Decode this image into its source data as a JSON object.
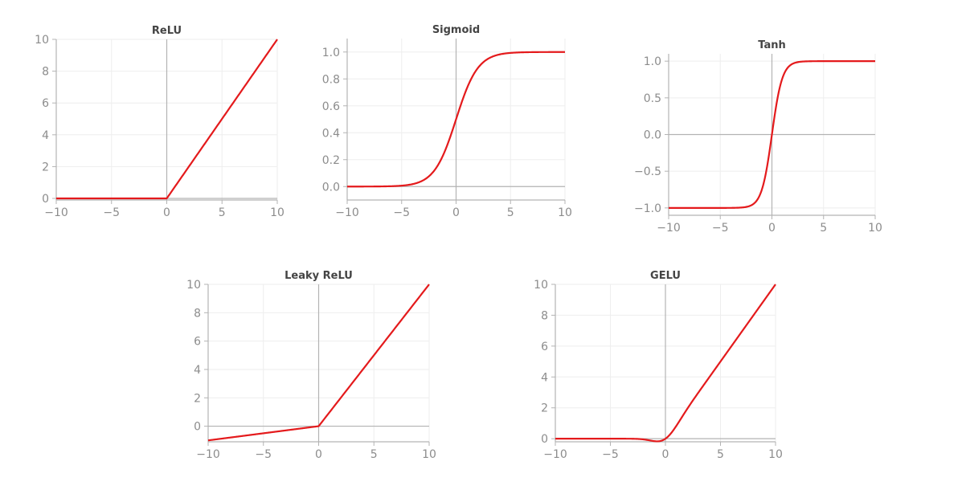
{
  "accent_color": "#e41a1c",
  "chart_data": [
    {
      "type": "line",
      "title": "ReLU",
      "function": "relu",
      "xlim": [
        -10,
        10
      ],
      "ylim": [
        -0.1,
        10
      ],
      "xticks": [
        -10,
        -5,
        0,
        5,
        10
      ],
      "xtick_labels": [
        "−10",
        "−5",
        "0",
        "5",
        "10"
      ],
      "yticks": [
        0,
        2,
        4,
        6,
        8,
        10
      ],
      "ytick_labels": [
        "0",
        "2",
        "4",
        "6",
        "8",
        "10"
      ],
      "grid": true,
      "x": [
        -10,
        -5,
        0,
        5,
        10
      ],
      "y": [
        0,
        0,
        0,
        5,
        10
      ]
    },
    {
      "type": "line",
      "title": "Sigmoid",
      "function": "sigmoid",
      "xlim": [
        -10,
        10
      ],
      "ylim": [
        -0.1,
        1.1
      ],
      "xticks": [
        -10,
        -5,
        0,
        5,
        10
      ],
      "xtick_labels": [
        "−10",
        "−5",
        "0",
        "5",
        "10"
      ],
      "yticks": [
        0.0,
        0.2,
        0.4,
        0.6,
        0.8,
        1.0
      ],
      "ytick_labels": [
        "0.0",
        "0.2",
        "0.4",
        "0.6",
        "0.8",
        "1.0"
      ],
      "grid": true,
      "x": [
        -10,
        -5,
        -2,
        0,
        2,
        5,
        10
      ],
      "y": [
        0.0,
        0.007,
        0.119,
        0.5,
        0.881,
        0.993,
        1.0
      ]
    },
    {
      "type": "line",
      "title": "Tanh",
      "function": "tanh",
      "xlim": [
        -10,
        10
      ],
      "ylim": [
        -1.1,
        1.1
      ],
      "xticks": [
        -10,
        -5,
        0,
        5,
        10
      ],
      "xtick_labels": [
        "−10",
        "−5",
        "0",
        "5",
        "10"
      ],
      "yticks": [
        -1.0,
        -0.5,
        0.0,
        0.5,
        1.0
      ],
      "ytick_labels": [
        "−1.0",
        "−0.5",
        "0.0",
        "0.5",
        "1.0"
      ],
      "grid": true,
      "x": [
        -10,
        -2,
        -1,
        0,
        1,
        2,
        10
      ],
      "y": [
        -1.0,
        -0.964,
        -0.762,
        0.0,
        0.762,
        0.964,
        1.0
      ]
    },
    {
      "type": "line",
      "title": "Leaky ReLU",
      "function": "leaky_relu",
      "alpha": 0.1,
      "xlim": [
        -10,
        10
      ],
      "ylim": [
        -1.1,
        10
      ],
      "xticks": [
        -10,
        -5,
        0,
        5,
        10
      ],
      "xtick_labels": [
        "−10",
        "−5",
        "0",
        "5",
        "10"
      ],
      "yticks": [
        0,
        2,
        4,
        6,
        8,
        10
      ],
      "ytick_labels": [
        "0",
        "2",
        "4",
        "6",
        "8",
        "10"
      ],
      "grid": true,
      "x": [
        -10,
        -5,
        0,
        5,
        10
      ],
      "y": [
        -1.0,
        -0.5,
        0,
        5,
        10
      ]
    },
    {
      "type": "line",
      "title": "GELU",
      "function": "gelu",
      "xlim": [
        -10,
        10
      ],
      "ylim": [
        -0.2,
        10
      ],
      "xticks": [
        -10,
        -5,
        0,
        5,
        10
      ],
      "xtick_labels": [
        "−10",
        "−5",
        "0",
        "5",
        "10"
      ],
      "yticks": [
        0,
        2,
        4,
        6,
        8,
        10
      ],
      "ytick_labels": [
        "0",
        "2",
        "4",
        "6",
        "8",
        "10"
      ],
      "grid": true,
      "x": [
        -10,
        -3,
        -1,
        -0.5,
        0,
        1,
        2,
        5,
        10
      ],
      "y": [
        0,
        -0.004,
        -0.159,
        -0.154,
        0,
        0.841,
        1.955,
        5.0,
        10.0
      ]
    }
  ]
}
